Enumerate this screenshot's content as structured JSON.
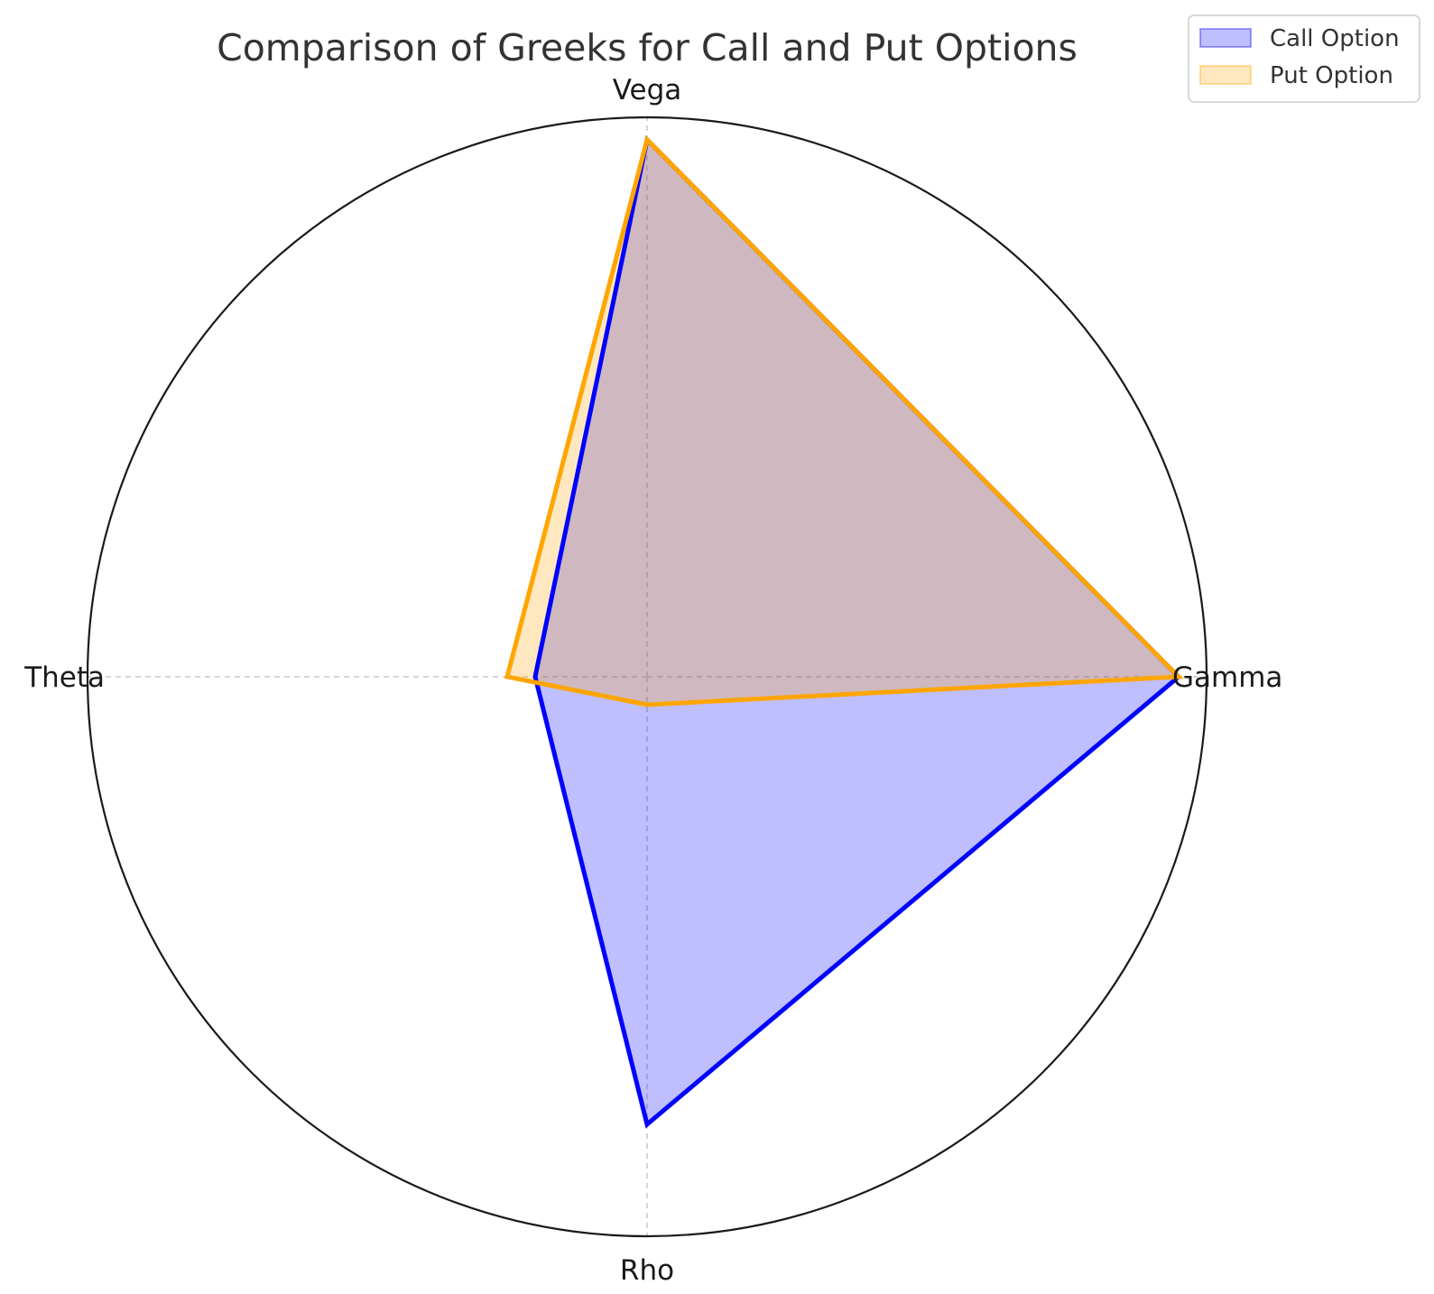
{
  "chart_data": {
    "type": "radar",
    "title": "Comparison of Greeks for Call and Put Options",
    "axes": [
      "Gamma",
      "Vega",
      "Theta",
      "Rho"
    ],
    "rlim": [
      0,
      1
    ],
    "grid": true,
    "legend_position": "top-right",
    "series": [
      {
        "name": "Call Option",
        "values": [
          0.95,
          0.96,
          0.2,
          0.8
        ],
        "color": "#0000ff",
        "fill": "#0000ff",
        "fill_opacity": 0.25
      },
      {
        "name": "Put Option",
        "values": [
          0.95,
          0.96,
          0.25,
          0.05
        ],
        "color": "#ffa500",
        "fill": "#ffa500",
        "fill_opacity": 0.25
      }
    ]
  }
}
